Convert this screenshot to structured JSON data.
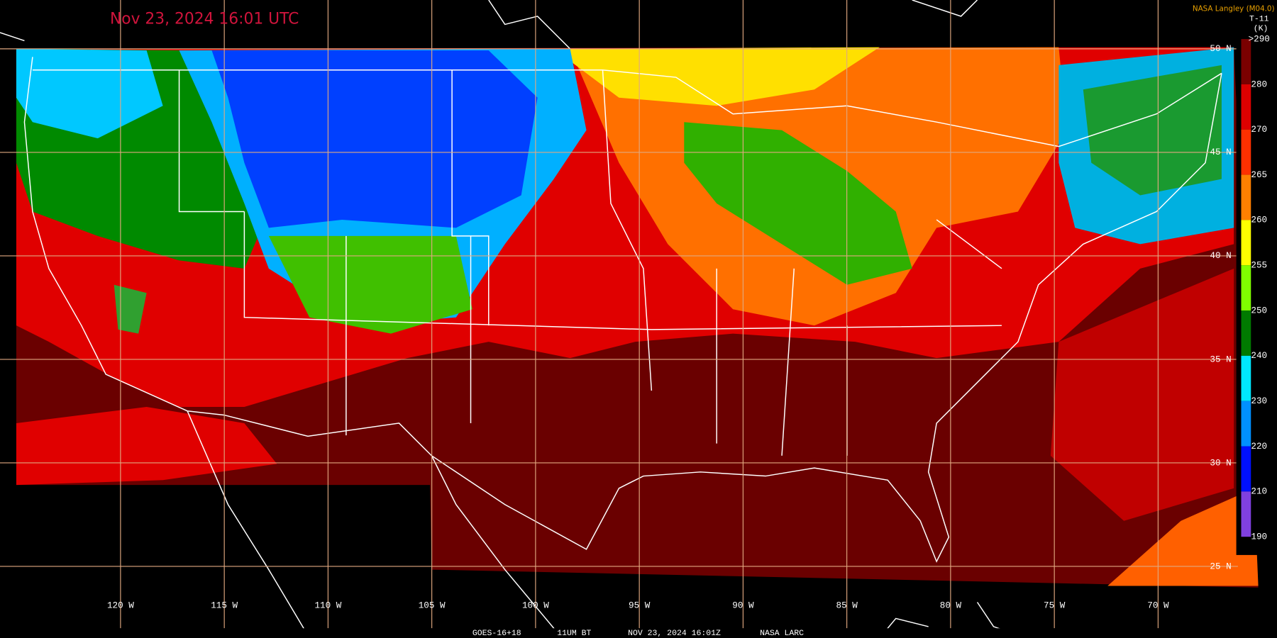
{
  "header": {
    "title": "Nov 23, 2024 16:01 UTC",
    "credit": "NASA Langley (M04.0)"
  },
  "legend": {
    "title": "T-11",
    "unit": "(K)",
    "labels": [
      ">290",
      "280",
      "270",
      "265",
      "260",
      "255",
      "250",
      "240",
      "230",
      "220",
      "210",
      "190"
    ],
    "colors": [
      "#7a0000",
      "#dd0000",
      "#ff3000",
      "#ff8000",
      "#ffff00",
      "#80ff00",
      "#007a00",
      "#00e8ff",
      "#0090ff",
      "#0010ff",
      "#8040e0"
    ]
  },
  "grid": {
    "latitudes": [
      "50 N",
      "45 N",
      "40 N",
      "35 N",
      "30 N",
      "25 N"
    ],
    "longitudes": [
      "120 W",
      "115 W",
      "110 W",
      "105 W",
      "100 W",
      "95 W",
      "90 W",
      "85 W",
      "80 W",
      "75 W",
      "70 W"
    ]
  },
  "footer": [
    "GOES-16+18",
    "11UM BT",
    "NOV 23, 2024 16:01Z",
    "NASA LARC"
  ]
}
